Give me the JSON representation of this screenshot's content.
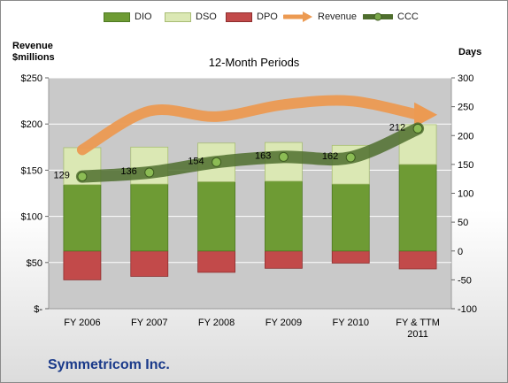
{
  "chart_data": {
    "type": "bar",
    "title": "12-Month Periods",
    "footer": "Symmetricom Inc.",
    "y_left_label": [
      "Revenue",
      "$millions"
    ],
    "y_right_label": "Days",
    "y_left_ticks": [
      "$-",
      "$50",
      "$100",
      "$150",
      "$200",
      "$250"
    ],
    "y_left_range": [
      0,
      250
    ],
    "y_right_ticks": [
      "-100",
      "-50",
      "0",
      "50",
      "100",
      "150",
      "200",
      "250",
      "300"
    ],
    "y_right_range": [
      -100,
      300
    ],
    "categories": [
      [
        "FY 2006"
      ],
      [
        "FY 2007"
      ],
      [
        "FY 2008"
      ],
      [
        "FY 2009"
      ],
      [
        "FY 2010"
      ],
      [
        "FY & TTM",
        "2011"
      ]
    ],
    "legend": [
      "DIO",
      "DSO",
      "DPO",
      "Revenue",
      "CCC"
    ],
    "series": [
      {
        "name": "DIO",
        "axis": "right",
        "values": [
          115,
          116,
          120,
          121,
          116,
          150
        ],
        "color": "#6e9b34"
      },
      {
        "name": "DSO",
        "axis": "right",
        "values": [
          64,
          64,
          67,
          67,
          67,
          69
        ],
        "color": "#dbe8b4"
      },
      {
        "name": "DPO",
        "axis": "right",
        "values": [
          -50,
          -44,
          -37,
          -30,
          -21,
          -31
        ],
        "color": "#c24a4a"
      },
      {
        "name": "Revenue",
        "axis": "left",
        "values": [
          172,
          214,
          208,
          221,
          225,
          210
        ],
        "color": "#ec9a52"
      },
      {
        "name": "CCC",
        "axis": "right",
        "values": [
          129,
          136,
          154,
          163,
          162,
          212
        ],
        "color": "#4f6e2e",
        "labels": [
          "129",
          "136",
          "154",
          "163",
          "162",
          "212"
        ]
      }
    ],
    "grid": true,
    "legend_position": "top"
  },
  "colors": {
    "plot_bg": "#c9c9c9",
    "grid": "#ffffff",
    "company": "#1a3a8a"
  }
}
